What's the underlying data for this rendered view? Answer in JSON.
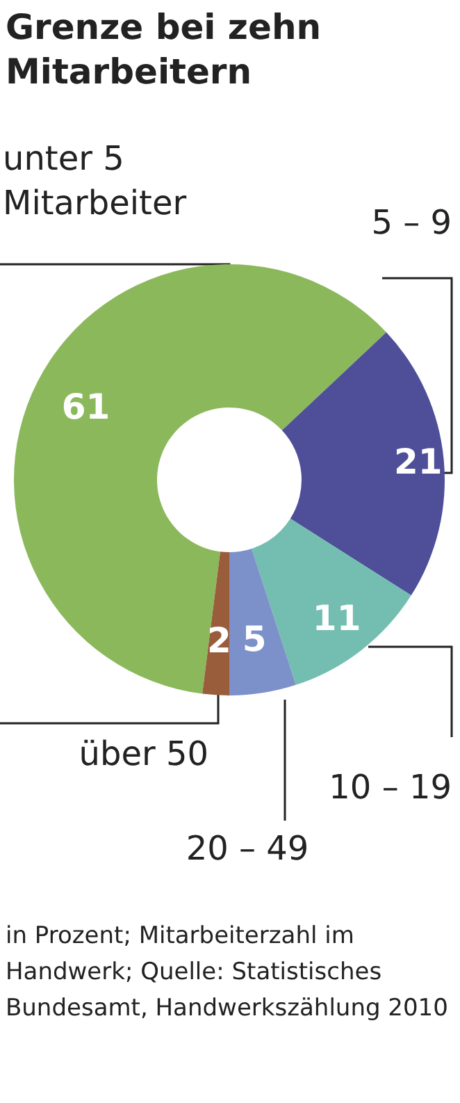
{
  "chart_data": {
    "type": "donut",
    "title": "Grenze bei zehn Mitarbeitern",
    "categories": [
      "unter 5 Mitarbeiter",
      "5 – 9",
      "10 – 19",
      "20 – 49",
      "über 50"
    ],
    "values": [
      61,
      21,
      11,
      5,
      2
    ],
    "colors": [
      "#8cb85c",
      "#4e4f98",
      "#74bdb1",
      "#7c90ca",
      "#9a5d3b"
    ],
    "data_labels": true,
    "annotations": [
      "in Prozent; Mitarbeiterzahl im Handwerk; Quelle: Statistisches Bundesamt, Handwerkszählung 2010"
    ]
  }
}
